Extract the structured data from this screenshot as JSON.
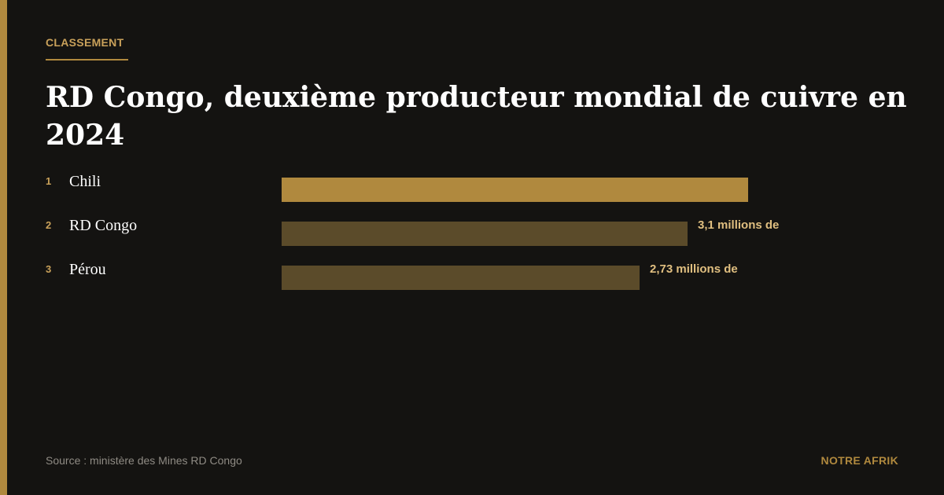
{
  "header": {
    "kicker": "CLASSEMENT",
    "title": "RD Congo, deuxième producteur mondial de cuivre en 2024"
  },
  "chart_data": {
    "type": "bar",
    "orientation": "horizontal",
    "categories": [
      "Chili",
      "RD Congo",
      "Pérou"
    ],
    "ranks": [
      "1",
      "2",
      "3"
    ],
    "values": [
      3.56,
      3.1,
      2.73
    ],
    "value_labels": [
      "",
      "3,1 millions de",
      "2,73 millions de"
    ],
    "colors": [
      "#b0893e",
      "#5b4b2a",
      "#5b4b2a"
    ],
    "xlim": [
      0,
      3.56
    ]
  },
  "footer": {
    "source": "Source : ministère des Mines RD Congo",
    "brand": "NOTRE AFRIK"
  }
}
